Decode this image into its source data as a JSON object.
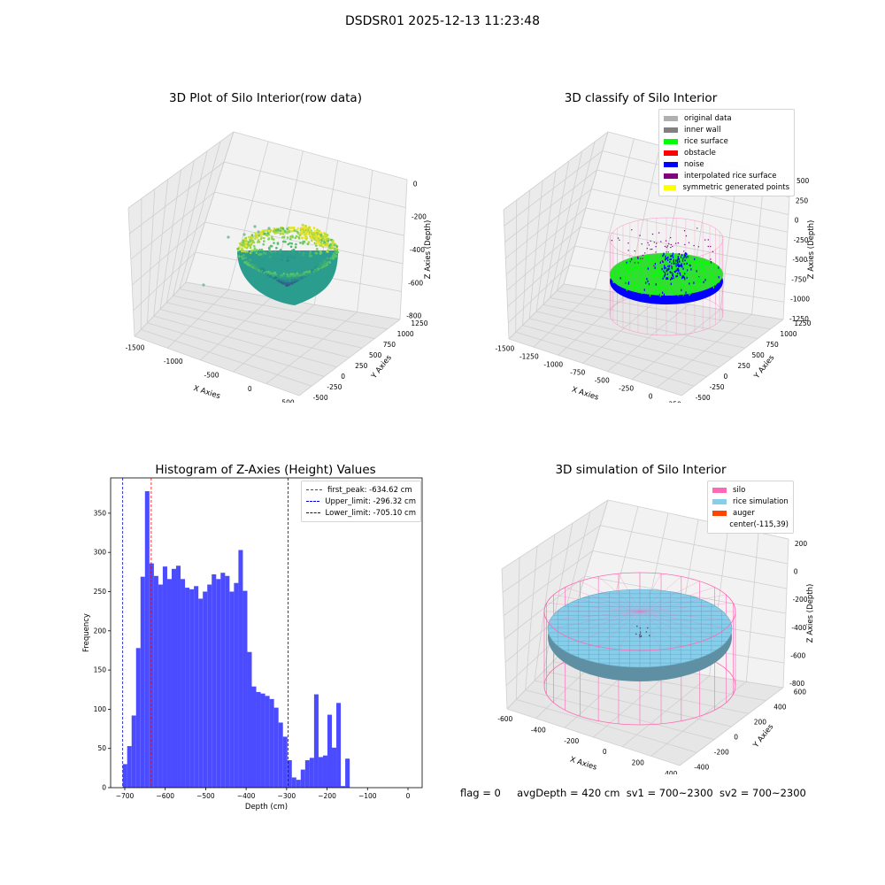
{
  "suptitle": "DSDSR01 2025-12-13 11:23:48",
  "footer": {
    "flag": "flag = 0",
    "avg_depth": "avgDepth = 420 cm",
    "sv1": "sv1 = 700~2300",
    "sv2": "sv2 = 700~2300"
  },
  "colors": {
    "histogram_bar": "#4b4bff",
    "first_peak_line": "#ff0000",
    "limit_line": "#0000cc",
    "silo_wire": "#ff69b4",
    "rice_simulation": "#87ceeb",
    "rice_surface": "#00ff00",
    "noise": "#0000ff"
  },
  "chart_data": [
    {
      "type": "scatter3d",
      "title": "3D Plot of Silo Interior(row data)",
      "xlabel": "X Axies",
      "ylabel": "Y Axies",
      "zlabel": "Z Axies (Depth)",
      "x_ticks": [
        "-1500",
        "-1000",
        "-500",
        "0",
        "500"
      ],
      "y_ticks": [
        "-500",
        "-250",
        "0",
        "250",
        "500",
        "750",
        "1000",
        "1250"
      ],
      "z_ticks": [
        "-800",
        "-600",
        "-400",
        "-200",
        "0"
      ],
      "colormap": "viridis"
    },
    {
      "type": "scatter3d",
      "title": "3D classify of Silo Interior",
      "xlabel": "X Axies",
      "ylabel": "Y Axies",
      "zlabel": "Z Axies (Depth)",
      "x_ticks": [
        "-1500",
        "-1250",
        "-1000",
        "-750",
        "-500",
        "-250",
        "0",
        "250"
      ],
      "y_ticks": [
        "-500",
        "-250",
        "0",
        "250",
        "500",
        "750",
        "1000",
        "1250"
      ],
      "z_ticks": [
        "-1250",
        "-1000",
        "-750",
        "-500",
        "-250",
        "0",
        "250",
        "500"
      ],
      "legend": [
        {
          "label": "original data",
          "color": "#b0b0b0"
        },
        {
          "label": "inner wall",
          "color": "#808080"
        },
        {
          "label": "rice surface",
          "color": "#00ff00"
        },
        {
          "label": "obstacle",
          "color": "#ff0000"
        },
        {
          "label": "noise",
          "color": "#0000ff"
        },
        {
          "label": "interpolated rice surface",
          "color": "#800080"
        },
        {
          "label": "symmetric generated points",
          "color": "#ffff00"
        }
      ],
      "legend_placement": "top-right"
    },
    {
      "type": "bar",
      "title": "Histogram of Z-Axies (Height) Values",
      "xlabel": "Depth (cm)",
      "ylabel": "Frequency",
      "xlim": [
        -735,
        35
      ],
      "ylim": [
        0,
        395
      ],
      "x_ticks": [
        -700,
        -600,
        -500,
        -400,
        -300,
        -200,
        -100,
        0
      ],
      "y_ticks": [
        0,
        50,
        100,
        150,
        200,
        250,
        300,
        350
      ],
      "bin_start": -705.1,
      "bin_width": 11.0,
      "values": [
        30,
        53,
        92,
        178,
        269,
        378,
        286,
        270,
        259,
        282,
        266,
        279,
        283,
        266,
        255,
        253,
        257,
        241,
        250,
        259,
        272,
        266,
        274,
        270,
        250,
        261,
        303,
        251,
        173,
        129,
        122,
        120,
        117,
        113,
        102,
        83,
        65,
        35,
        13,
        10,
        23,
        35,
        38,
        119,
        39,
        41,
        93,
        51,
        108,
        2,
        37
      ],
      "vlines": [
        {
          "label": "first_peak: -634.62 cm",
          "x": -634.62,
          "color": "#ff0000"
        },
        {
          "label": "Upper_limit: -296.32 cm",
          "x": -296.32,
          "color": "#0000cc"
        },
        {
          "label": "Lower_limit: -705.10 cm",
          "x": -705.1,
          "color": "#0000cc"
        }
      ],
      "legend_placement": "top-right",
      "grid": false
    },
    {
      "type": "surface3d",
      "title": "3D simulation of Silo Interior",
      "xlabel": "X Axies",
      "ylabel": "Y Axies",
      "zlabel": "Z Axies (Depth)",
      "x_ticks": [
        "-600",
        "-400",
        "-200",
        "0",
        "200",
        "400"
      ],
      "y_ticks": [
        "-400",
        "-200",
        "0",
        "200",
        "400",
        "600"
      ],
      "z_ticks": [
        "-800",
        "-600",
        "-400",
        "-200",
        "0",
        "200"
      ],
      "legend": [
        {
          "label": "silo",
          "color": "#ff69b4"
        },
        {
          "label": "rice simulation",
          "color": "#87ceeb"
        },
        {
          "label": "auger",
          "color": "#ff4500"
        },
        {
          "label": "center(-115,39)",
          "color": ""
        }
      ],
      "legend_placement": "top-right"
    }
  ]
}
